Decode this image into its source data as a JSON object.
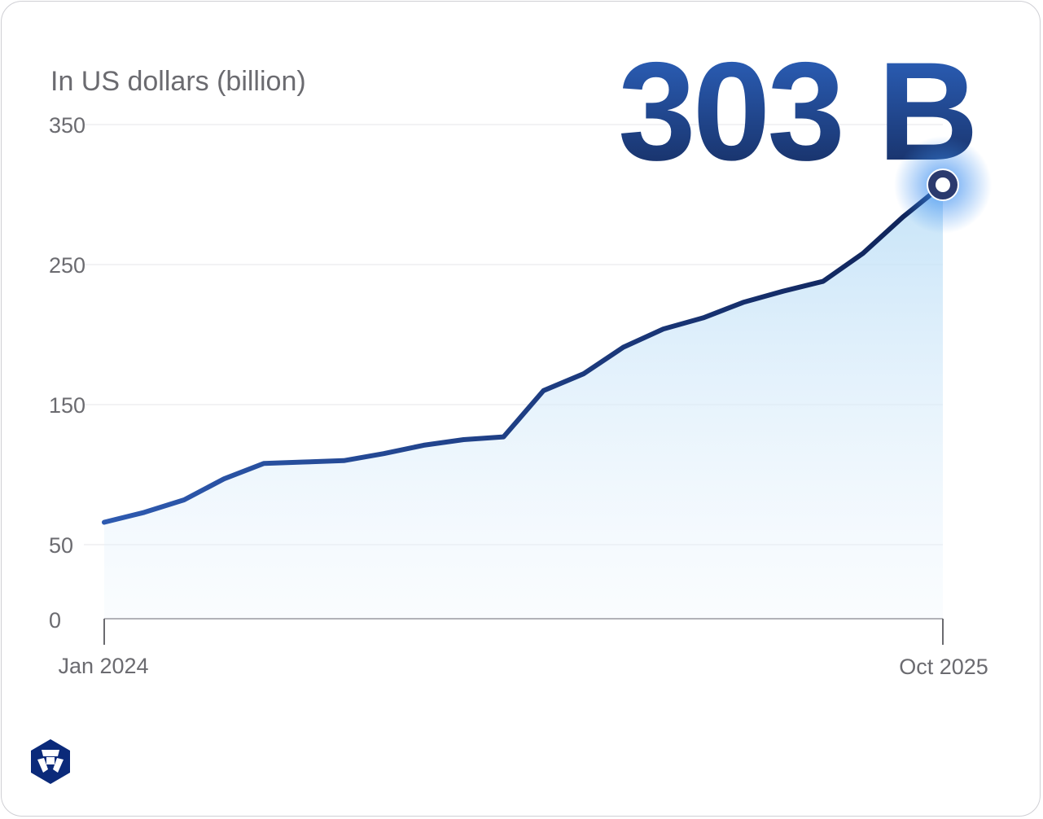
{
  "chart_data": {
    "type": "area",
    "title": "",
    "headline_value": "303 B",
    "ylabel": "In US dollars (billion)",
    "xlabel": "",
    "ylim": [
      0,
      350
    ],
    "yticks": [
      0,
      50,
      150,
      250,
      350
    ],
    "ytick_labels": [
      "0",
      "50",
      "150",
      "250",
      "350"
    ],
    "xtick_labels": [
      "Jan 2024",
      "Oct 2025"
    ],
    "grid": true,
    "x": [
      "2024-01",
      "2024-02",
      "2024-03",
      "2024-04",
      "2024-05",
      "2024-06",
      "2024-07",
      "2024-08",
      "2024-09",
      "2024-10",
      "2024-11",
      "2024-12",
      "2025-01",
      "2025-02",
      "2025-03",
      "2025-04",
      "2025-05",
      "2025-06",
      "2025-07",
      "2025-08",
      "2025-09",
      "2025-10"
    ],
    "values": [
      66,
      73,
      82,
      97,
      108,
      109,
      110,
      115,
      121,
      125,
      127,
      160,
      172,
      191,
      204,
      212,
      223,
      231,
      238,
      258,
      284,
      303
    ],
    "colors": {
      "line_start": "#2e5ab0",
      "line_end": "#0e2257",
      "fill": "#d3e8f8",
      "marker": "#2b3a6e",
      "glow": "#3d8ff0",
      "logo": "#0b2a7a"
    }
  },
  "brand": {
    "logo": "crypto.com lion logo"
  }
}
